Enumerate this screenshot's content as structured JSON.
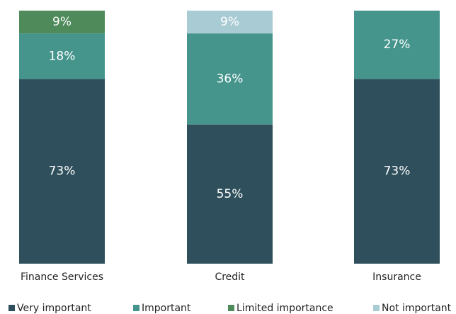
{
  "chart_data": {
    "type": "stacked_bar",
    "categories": [
      "Finance Services",
      "Credit",
      "Insurance"
    ],
    "series": [
      {
        "name": "Very important",
        "color": "#2e4f5b",
        "values": [
          73,
          55,
          73
        ],
        "value_labels": [
          "73%",
          "55%",
          "73%"
        ]
      },
      {
        "name": "Important",
        "color": "#45958d",
        "values": [
          18,
          36,
          27
        ],
        "value_labels": [
          "18%",
          "36%",
          "27%"
        ]
      },
      {
        "name": "Limited importance",
        "color": "#4e8a5a",
        "values": [
          9,
          0,
          0
        ],
        "value_labels": [
          "9%",
          null,
          null
        ]
      },
      {
        "name": "Not important",
        "color": "#a9cbd3",
        "values": [
          0,
          9,
          0
        ],
        "value_labels": [
          null,
          "9%",
          null
        ]
      }
    ],
    "ylim": [
      0,
      100
    ],
    "legend": "bottom"
  }
}
